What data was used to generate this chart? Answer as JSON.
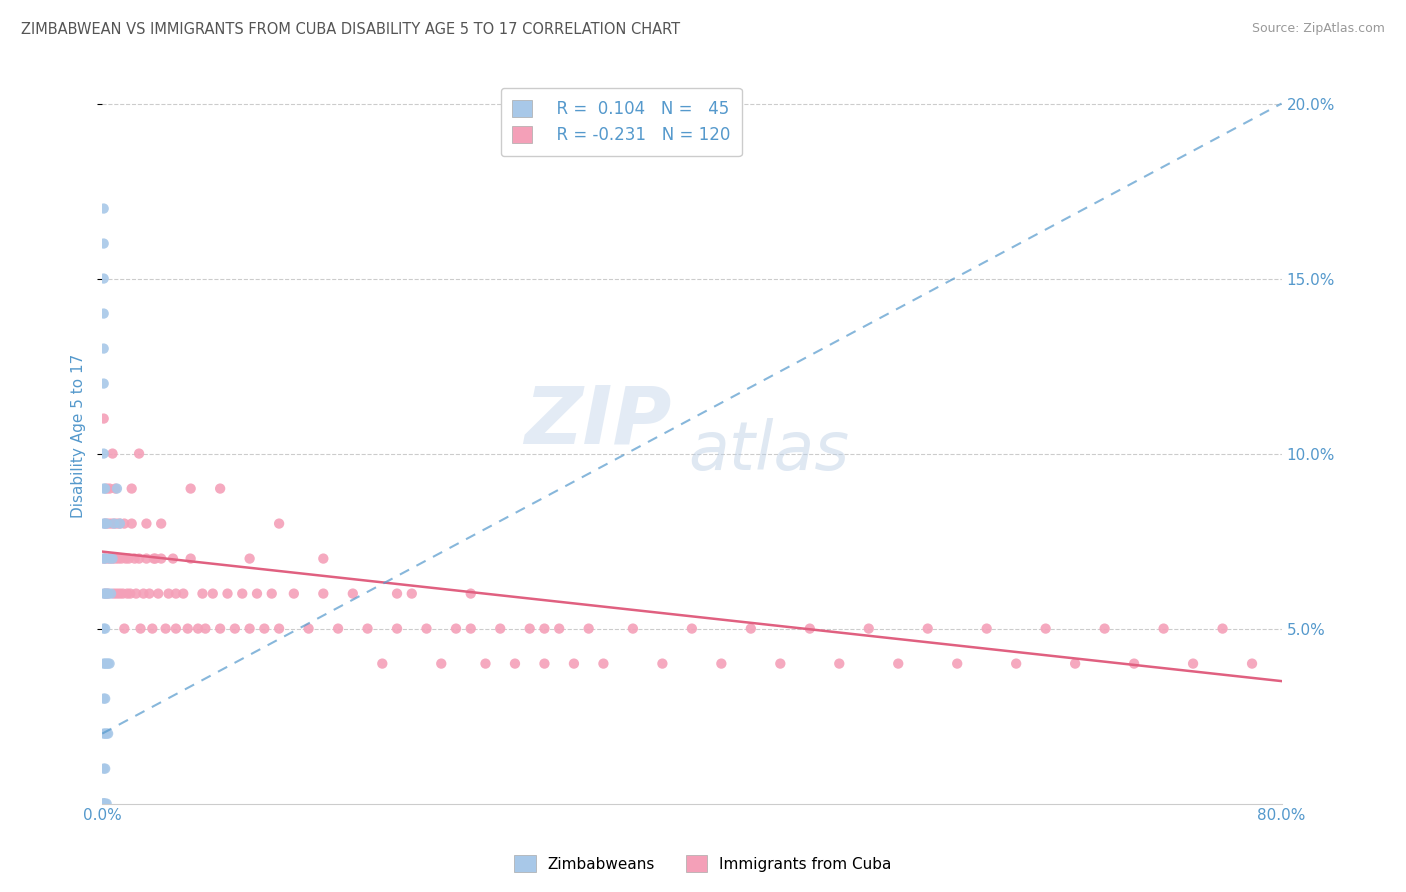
{
  "title": "ZIMBABWEAN VS IMMIGRANTS FROM CUBA DISABILITY AGE 5 TO 17 CORRELATION CHART",
  "source": "Source: ZipAtlas.com",
  "ylabel": "Disability Age 5 to 17",
  "x_min": 0.0,
  "x_max": 0.8,
  "y_min": 0.0,
  "y_max": 0.21,
  "zim_color": "#a8c8e8",
  "cuba_color": "#f4a0b8",
  "zim_R": 0.104,
  "zim_N": 45,
  "cuba_R": -0.231,
  "cuba_N": 120,
  "zim_trend_color": "#5599cc",
  "cuba_trend_color": "#e06080",
  "watermark_zip": "ZIP",
  "watermark_atlas": "atlas",
  "background_color": "#ffffff",
  "grid_color": "#cccccc",
  "title_color": "#555555",
  "axis_tick_color": "#5599cc",
  "legend_color": "#5599cc",
  "zim_x": [
    0.001,
    0.001,
    0.001,
    0.001,
    0.001,
    0.001,
    0.001,
    0.001,
    0.001,
    0.001,
    0.001,
    0.001,
    0.001,
    0.001,
    0.001,
    0.001,
    0.001,
    0.001,
    0.001,
    0.001,
    0.002,
    0.002,
    0.002,
    0.002,
    0.002,
    0.002,
    0.002,
    0.002,
    0.002,
    0.002,
    0.003,
    0.003,
    0.003,
    0.003,
    0.003,
    0.004,
    0.004,
    0.004,
    0.005,
    0.005,
    0.006,
    0.007,
    0.008,
    0.01,
    0.012
  ],
  "zim_y": [
    0.0,
    0.0,
    0.0,
    0.0,
    0.01,
    0.02,
    0.03,
    0.04,
    0.05,
    0.06,
    0.07,
    0.08,
    0.09,
    0.1,
    0.12,
    0.13,
    0.14,
    0.15,
    0.16,
    0.17,
    0.0,
    0.01,
    0.02,
    0.03,
    0.04,
    0.05,
    0.06,
    0.07,
    0.08,
    0.09,
    0.0,
    0.02,
    0.04,
    0.06,
    0.08,
    0.02,
    0.04,
    0.06,
    0.04,
    0.07,
    0.06,
    0.07,
    0.08,
    0.09,
    0.08
  ],
  "cuba_x": [
    0.001,
    0.001,
    0.002,
    0.002,
    0.003,
    0.003,
    0.004,
    0.004,
    0.005,
    0.005,
    0.006,
    0.007,
    0.007,
    0.008,
    0.008,
    0.009,
    0.009,
    0.01,
    0.01,
    0.011,
    0.012,
    0.012,
    0.013,
    0.014,
    0.015,
    0.015,
    0.016,
    0.017,
    0.018,
    0.019,
    0.02,
    0.022,
    0.023,
    0.025,
    0.026,
    0.028,
    0.03,
    0.032,
    0.034,
    0.036,
    0.038,
    0.04,
    0.043,
    0.045,
    0.048,
    0.05,
    0.055,
    0.058,
    0.06,
    0.065,
    0.068,
    0.07,
    0.075,
    0.08,
    0.085,
    0.09,
    0.095,
    0.1,
    0.105,
    0.11,
    0.115,
    0.12,
    0.13,
    0.14,
    0.15,
    0.16,
    0.17,
    0.18,
    0.19,
    0.2,
    0.21,
    0.22,
    0.23,
    0.24,
    0.25,
    0.26,
    0.27,
    0.28,
    0.29,
    0.3,
    0.31,
    0.32,
    0.33,
    0.34,
    0.36,
    0.38,
    0.4,
    0.42,
    0.44,
    0.46,
    0.48,
    0.5,
    0.52,
    0.54,
    0.56,
    0.58,
    0.6,
    0.62,
    0.64,
    0.66,
    0.68,
    0.7,
    0.72,
    0.74,
    0.76,
    0.78,
    0.02,
    0.025,
    0.03,
    0.035,
    0.04,
    0.05,
    0.06,
    0.08,
    0.1,
    0.12,
    0.15,
    0.2,
    0.25,
    0.3
  ],
  "cuba_y": [
    0.07,
    0.11,
    0.08,
    0.06,
    0.07,
    0.09,
    0.06,
    0.08,
    0.07,
    0.09,
    0.08,
    0.07,
    0.1,
    0.06,
    0.08,
    0.07,
    0.09,
    0.06,
    0.08,
    0.07,
    0.06,
    0.08,
    0.07,
    0.06,
    0.08,
    0.05,
    0.07,
    0.06,
    0.07,
    0.06,
    0.08,
    0.07,
    0.06,
    0.07,
    0.05,
    0.06,
    0.07,
    0.06,
    0.05,
    0.07,
    0.06,
    0.07,
    0.05,
    0.06,
    0.07,
    0.05,
    0.06,
    0.05,
    0.07,
    0.05,
    0.06,
    0.05,
    0.06,
    0.05,
    0.06,
    0.05,
    0.06,
    0.05,
    0.06,
    0.05,
    0.06,
    0.05,
    0.06,
    0.05,
    0.06,
    0.05,
    0.06,
    0.05,
    0.04,
    0.05,
    0.06,
    0.05,
    0.04,
    0.05,
    0.06,
    0.04,
    0.05,
    0.04,
    0.05,
    0.04,
    0.05,
    0.04,
    0.05,
    0.04,
    0.05,
    0.04,
    0.05,
    0.04,
    0.05,
    0.04,
    0.05,
    0.04,
    0.05,
    0.04,
    0.05,
    0.04,
    0.05,
    0.04,
    0.05,
    0.04,
    0.05,
    0.04,
    0.05,
    0.04,
    0.05,
    0.04,
    0.09,
    0.1,
    0.08,
    0.07,
    0.08,
    0.06,
    0.09,
    0.09,
    0.07,
    0.08,
    0.07,
    0.06,
    0.05,
    0.05
  ],
  "zim_trend_start_x": 0.0,
  "zim_trend_end_x": 0.8,
  "zim_trend_start_y": 0.02,
  "zim_trend_end_y": 0.2,
  "cuba_trend_start_x": 0.0,
  "cuba_trend_end_x": 0.8,
  "cuba_trend_start_y": 0.072,
  "cuba_trend_end_y": 0.035
}
